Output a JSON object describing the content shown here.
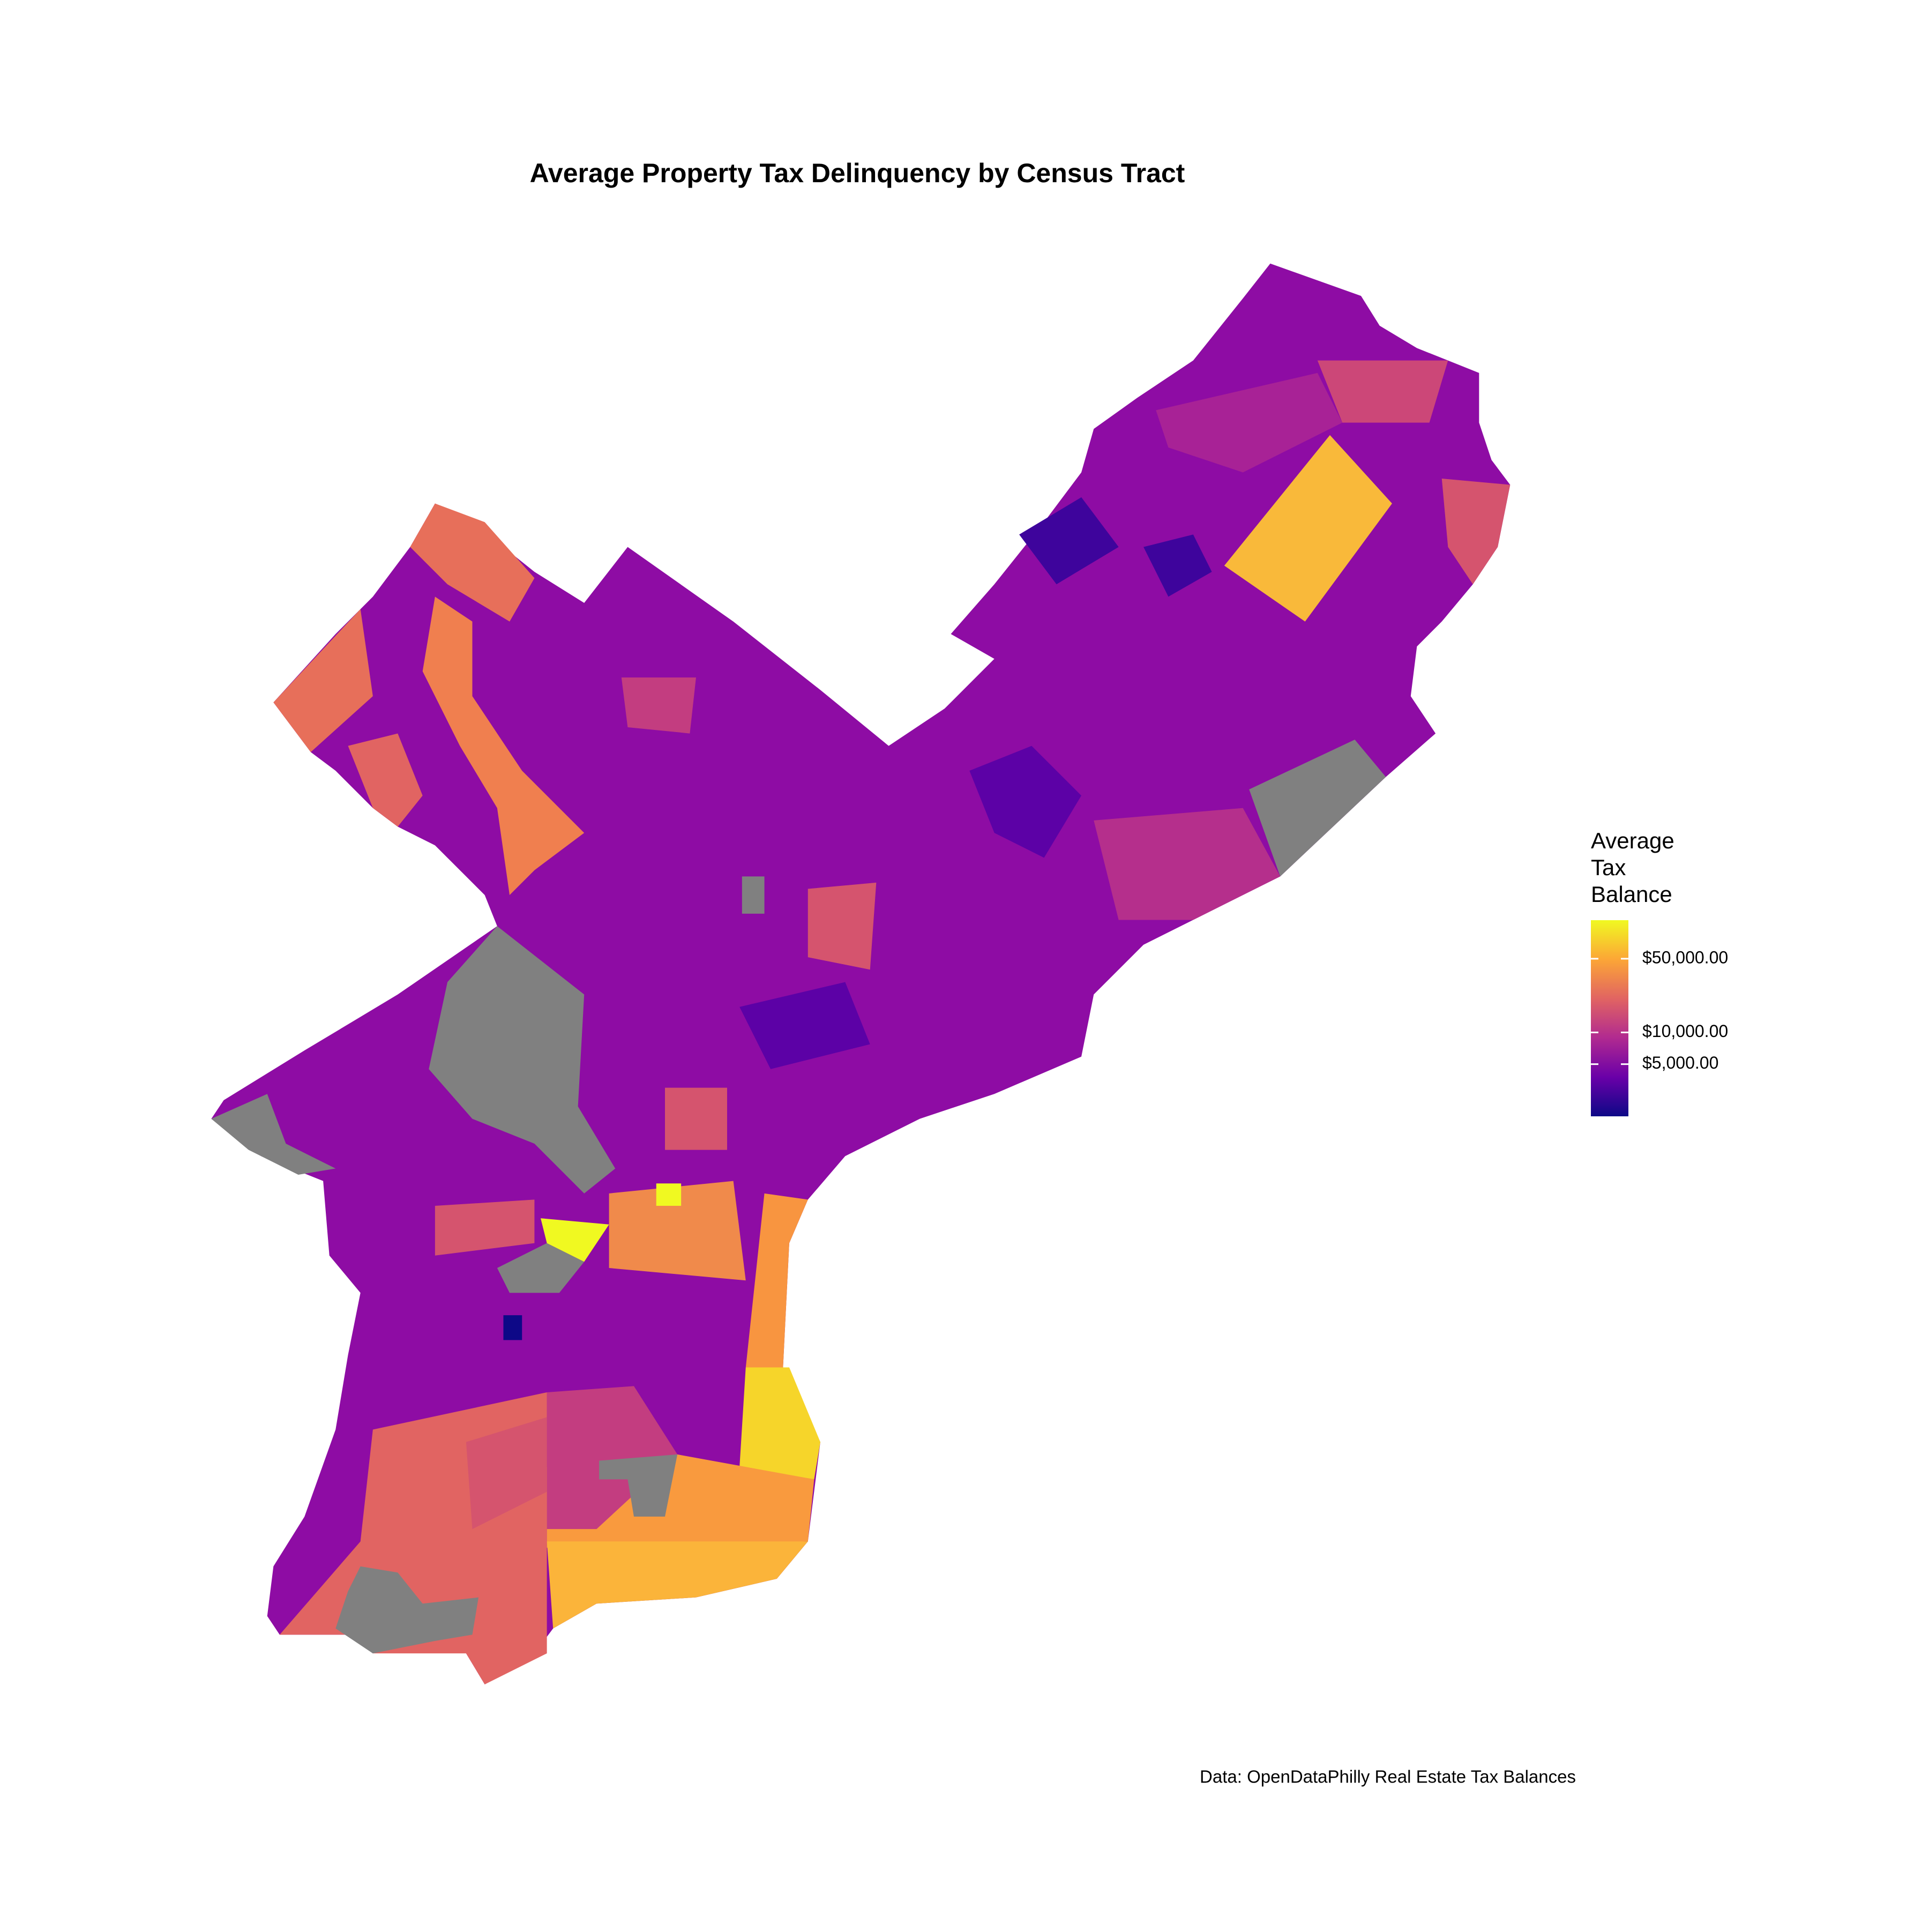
{
  "chart_data": {
    "type": "choropleth",
    "title": "Average Property Tax Delinquency by Census Tract",
    "caption": "Data: OpenDataPhilly Real Estate Tax Balances",
    "legend": {
      "title": [
        "Average",
        "Tax",
        "Balance"
      ],
      "scale": "log",
      "lim": [
        1600,
        116000
      ],
      "ticks": [
        {
          "value": 5000,
          "label": "$5,000.00"
        },
        {
          "value": 10000,
          "label": "$10,000.00"
        },
        {
          "value": 50000,
          "label": "$50,000.00"
        }
      ],
      "colors": [
        "#0d0887",
        "#6a00a8",
        "#b12a90",
        "#e16462",
        "#fca636",
        "#f0f921"
      ]
    }
  }
}
